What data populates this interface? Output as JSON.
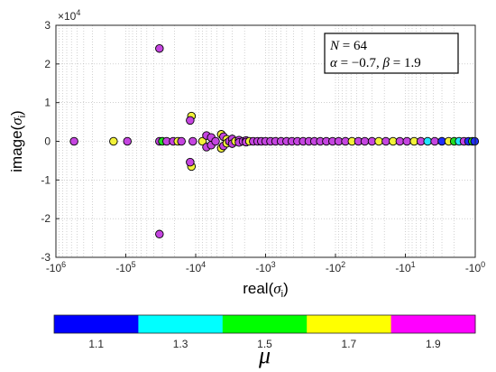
{
  "chart_data": {
    "type": "scatter",
    "xlabel_main": "real(",
    "xlabel_sym": "σ",
    "xlabel_sub": "i",
    "xlabel_close": ")",
    "ylabel_main": "image(",
    "ylabel_sym": "σ",
    "ylabel_sub": "i",
    "ylabel_close": ")",
    "x_scale": "symlog-negative",
    "xlim": [
      -1000000,
      -1
    ],
    "ylim": [
      -30000,
      30000
    ],
    "y_exponent_label": "×10",
    "y_exponent_power": "4",
    "x_tick_labels": [
      "-10",
      "-10",
      "-10",
      "-10",
      "-10",
      "-10",
      "-10"
    ],
    "x_tick_powers": [
      "6",
      "5",
      "4",
      "3",
      "2",
      "1",
      "0"
    ],
    "y_tick_labels": [
      "-3",
      "-2",
      "-1",
      "0",
      "1",
      "2",
      "3"
    ],
    "grid": true,
    "annotation": {
      "line1_var": "N",
      "line1_val": " = 64",
      "line2_a": "α",
      "line2_a_val": " = −0.7, ",
      "line2_b": "β",
      "line2_b_val": " = 1.9"
    },
    "colorbar": {
      "label": "μ",
      "ticks": [
        "1.1",
        "1.3",
        "1.5",
        "1.7",
        "1.9"
      ],
      "colors": [
        "#0000ff",
        "#00ffff",
        "#00ff00",
        "#ffff00",
        "#ff00ff"
      ]
    },
    "marker_colors": {
      "1.1": "#1f2fff",
      "1.3": "#22e5ff",
      "1.5": "#22dd22",
      "1.7": "#f2f23a",
      "1.9": "#c545e0"
    },
    "points": [
      {
        "x": -550000,
        "y": 0,
        "mu": "1.9"
      },
      {
        "x": -150000,
        "y": 0,
        "mu": "1.7"
      },
      {
        "x": -95000,
        "y": 0,
        "mu": "1.9"
      },
      {
        "x": -33000,
        "y": 24000,
        "mu": "1.9"
      },
      {
        "x": -33000,
        "y": -24000,
        "mu": "1.9"
      },
      {
        "x": -33000,
        "y": 0,
        "mu": "1.9"
      },
      {
        "x": -30000,
        "y": 0,
        "mu": "1.5"
      },
      {
        "x": -26000,
        "y": 0,
        "mu": "1.9"
      },
      {
        "x": -21000,
        "y": 0,
        "mu": "1.9"
      },
      {
        "x": -18000,
        "y": 0,
        "mu": "1.7"
      },
      {
        "x": -16000,
        "y": 0,
        "mu": "1.9"
      },
      {
        "x": -11500,
        "y": 6500,
        "mu": "1.7"
      },
      {
        "x": -11500,
        "y": -6500,
        "mu": "1.7"
      },
      {
        "x": -12000,
        "y": 5400,
        "mu": "1.9"
      },
      {
        "x": -12000,
        "y": -5400,
        "mu": "1.9"
      },
      {
        "x": -11000,
        "y": 0,
        "mu": "1.9"
      },
      {
        "x": -8000,
        "y": 0,
        "mu": "1.7"
      },
      {
        "x": -7000,
        "y": 1500,
        "mu": "1.9"
      },
      {
        "x": -7000,
        "y": -1500,
        "mu": "1.9"
      },
      {
        "x": -6000,
        "y": 1000,
        "mu": "1.9"
      },
      {
        "x": -6000,
        "y": -1000,
        "mu": "1.9"
      },
      {
        "x": -5200,
        "y": 0,
        "mu": "1.9"
      },
      {
        "x": -4300,
        "y": 1800,
        "mu": "1.7"
      },
      {
        "x": -4300,
        "y": -1800,
        "mu": "1.7"
      },
      {
        "x": -4000,
        "y": 1200,
        "mu": "1.9"
      },
      {
        "x": -4000,
        "y": -1200,
        "mu": "1.9"
      },
      {
        "x": -3600,
        "y": 500,
        "mu": "1.7"
      },
      {
        "x": -3600,
        "y": -500,
        "mu": "1.7"
      },
      {
        "x": -3300,
        "y": 0,
        "mu": "1.9"
      },
      {
        "x": -3000,
        "y": 600,
        "mu": "1.9"
      },
      {
        "x": -3000,
        "y": -600,
        "mu": "1.9"
      },
      {
        "x": -2700,
        "y": 0,
        "mu": "1.7"
      },
      {
        "x": -2400,
        "y": 300,
        "mu": "1.9"
      },
      {
        "x": -2400,
        "y": -300,
        "mu": "1.9"
      },
      {
        "x": -2100,
        "y": 0,
        "mu": "1.9"
      },
      {
        "x": -1900,
        "y": 200,
        "mu": "1.9"
      },
      {
        "x": -1900,
        "y": -200,
        "mu": "1.9"
      },
      {
        "x": -1700,
        "y": 0,
        "mu": "1.7"
      },
      {
        "x": -1500,
        "y": 0,
        "mu": "1.9"
      },
      {
        "x": -1300,
        "y": 0,
        "mu": "1.9"
      },
      {
        "x": -1150,
        "y": 0,
        "mu": "1.9"
      },
      {
        "x": -1000,
        "y": 0,
        "mu": "1.9"
      },
      {
        "x": -850,
        "y": 0,
        "mu": "1.9"
      },
      {
        "x": -720,
        "y": 0,
        "mu": "1.9"
      },
      {
        "x": -600,
        "y": 0,
        "mu": "1.9"
      },
      {
        "x": -500,
        "y": 0,
        "mu": "1.9"
      },
      {
        "x": -420,
        "y": 0,
        "mu": "1.9"
      },
      {
        "x": -350,
        "y": 0,
        "mu": "1.9"
      },
      {
        "x": -290,
        "y": 0,
        "mu": "1.9"
      },
      {
        "x": -240,
        "y": 0,
        "mu": "1.9"
      },
      {
        "x": -200,
        "y": 0,
        "mu": "1.9"
      },
      {
        "x": -165,
        "y": 0,
        "mu": "1.9"
      },
      {
        "x": -135,
        "y": 0,
        "mu": "1.9"
      },
      {
        "x": -110,
        "y": 0,
        "mu": "1.9"
      },
      {
        "x": -90,
        "y": 0,
        "mu": "1.9"
      },
      {
        "x": -72,
        "y": 0,
        "mu": "1.9"
      },
      {
        "x": -58,
        "y": 0,
        "mu": "1.7"
      },
      {
        "x": -47,
        "y": 0,
        "mu": "1.9"
      },
      {
        "x": -38,
        "y": 0,
        "mu": "1.9"
      },
      {
        "x": -30,
        "y": 0,
        "mu": "1.9"
      },
      {
        "x": -24,
        "y": 0,
        "mu": "1.7"
      },
      {
        "x": -19,
        "y": 0,
        "mu": "1.9"
      },
      {
        "x": -15,
        "y": 0,
        "mu": "1.7"
      },
      {
        "x": -12,
        "y": 0,
        "mu": "1.9"
      },
      {
        "x": -9.5,
        "y": 0,
        "mu": "1.9"
      },
      {
        "x": -7.5,
        "y": 0,
        "mu": "1.7"
      },
      {
        "x": -6,
        "y": 0,
        "mu": "1.9"
      },
      {
        "x": -4.8,
        "y": 0,
        "mu": "1.3"
      },
      {
        "x": -3.8,
        "y": 0,
        "mu": "1.9"
      },
      {
        "x": -3,
        "y": 0,
        "mu": "1.1"
      },
      {
        "x": -2.4,
        "y": 0,
        "mu": "1.7"
      },
      {
        "x": -2,
        "y": 0,
        "mu": "1.5"
      },
      {
        "x": -1.7,
        "y": 0,
        "mu": "1.3"
      },
      {
        "x": -1.45,
        "y": 0,
        "mu": "1.9"
      },
      {
        "x": -1.25,
        "y": 0,
        "mu": "1.1"
      },
      {
        "x": -1.1,
        "y": 0,
        "mu": "1.5"
      },
      {
        "x": -1.02,
        "y": 0,
        "mu": "1.1"
      }
    ]
  }
}
